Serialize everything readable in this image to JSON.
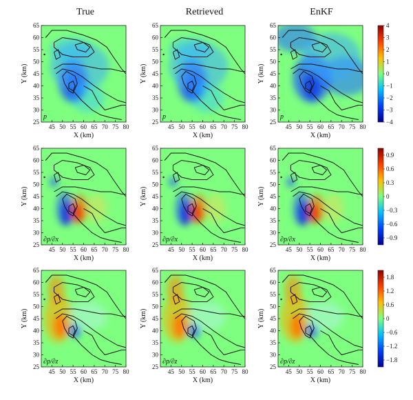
{
  "figure": {
    "columns": [
      "True",
      "Retrieved",
      "EnKF"
    ]
  },
  "chart_data": {
    "type": "heatmap",
    "xlabel": "X (km)",
    "ylabel": "Y (km)",
    "xlim": [
      40,
      80
    ],
    "ylim": [
      25,
      65
    ],
    "xticks": [
      45,
      50,
      55,
      60,
      65,
      70,
      75,
      80
    ],
    "yticks": [
      25,
      30,
      35,
      40,
      45,
      50,
      55,
      60,
      65
    ],
    "columns": [
      "True",
      "Retrieved",
      "EnKF"
    ],
    "rows": [
      {
        "field": "p",
        "label": "p",
        "colorbar_ticks": [
          "4",
          "3",
          "2",
          "1",
          "0",
          "−1",
          "−2",
          "−3",
          "−4"
        ],
        "colorbar_range": [
          -4,
          4
        ]
      },
      {
        "field": "dpdx",
        "label": "∂p/∂x",
        "colorbar_ticks": [
          "0.9",
          "0.6",
          "0.3",
          "0",
          "−0.3",
          "−0.6",
          "−0.9"
        ],
        "colorbar_range": [
          -1.05,
          1.05
        ]
      },
      {
        "field": "dpdz",
        "label": "∂p/∂z",
        "colorbar_ticks": [
          "1.8",
          "1.2",
          "0.6",
          "0",
          "−0.6",
          "−1.2",
          "−1.8"
        ],
        "colorbar_range": [
          -2.1,
          2.1
        ]
      }
    ],
    "colormap": [
      "#00008f",
      "#0040ff",
      "#00bfff",
      "#7fff7f",
      "#ffbf00",
      "#ff4000",
      "#8f0000"
    ],
    "grid": false,
    "legend": "colorbar-right"
  }
}
